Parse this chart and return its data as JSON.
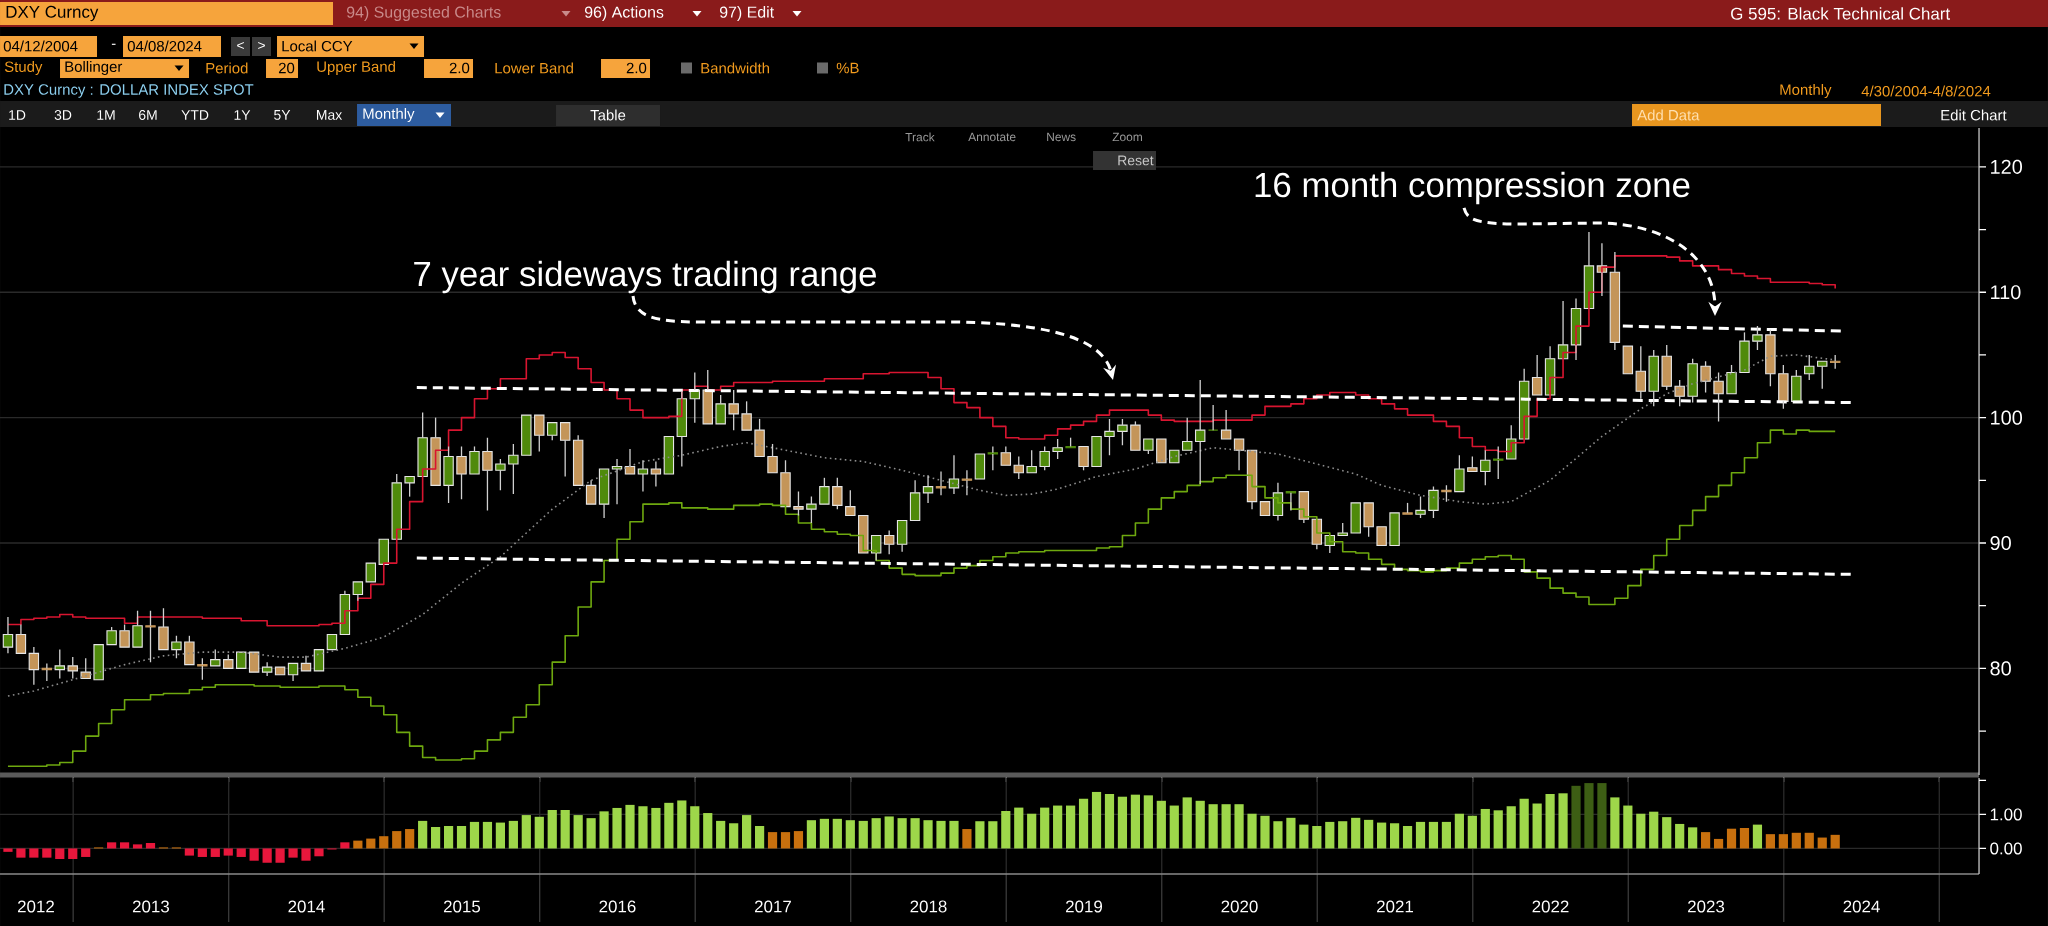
{
  "chart_data": [
    {
      "type": "candlestick",
      "title": "DXY Curncy : DOLLAR INDEX SPOT",
      "x": [
        "2012-07-31",
        "2012-08-31",
        "2012-09-30",
        "2012-10-31",
        "2012-11-30",
        "2012-12-31",
        "2013-01-31",
        "2013-02-28",
        "2013-03-31",
        "2013-04-30",
        "2013-05-31",
        "2013-06-30",
        "2013-07-31",
        "2013-08-31",
        "2013-09-30",
        "2013-10-31",
        "2013-11-30",
        "2013-12-31",
        "2014-01-31",
        "2014-02-28",
        "2014-03-31",
        "2014-04-30",
        "2014-05-31",
        "2014-06-30",
        "2014-07-31",
        "2014-08-31",
        "2014-09-30",
        "2014-10-31",
        "2014-11-30",
        "2014-12-31",
        "2015-01-31",
        "2015-02-28",
        "2015-03-31",
        "2015-04-30",
        "2015-05-31",
        "2015-06-30",
        "2015-07-31",
        "2015-08-31",
        "2015-09-30",
        "2015-10-31",
        "2015-11-30",
        "2015-12-31",
        "2016-01-31",
        "2016-02-29",
        "2016-03-31",
        "2016-04-30",
        "2016-05-31",
        "2016-06-30",
        "2016-07-31",
        "2016-08-31",
        "2016-09-30",
        "2016-10-31",
        "2016-11-30",
        "2016-12-31",
        "2017-01-31",
        "2017-02-28",
        "2017-03-31",
        "2017-04-30",
        "2017-05-31",
        "2017-06-30",
        "2017-07-31",
        "2017-08-31",
        "2017-09-30",
        "2017-10-31",
        "2017-11-30",
        "2017-12-31",
        "2018-01-31",
        "2018-02-28",
        "2018-03-31",
        "2018-04-30",
        "2018-05-31",
        "2018-06-30",
        "2018-07-31",
        "2018-08-31",
        "2018-09-30",
        "2018-10-31",
        "2018-11-30",
        "2018-12-31",
        "2019-01-31",
        "2019-02-28",
        "2019-03-31",
        "2019-04-30",
        "2019-05-31",
        "2019-06-30",
        "2019-07-31",
        "2019-08-31",
        "2019-09-30",
        "2019-10-31",
        "2019-11-30",
        "2019-12-31",
        "2020-01-31",
        "2020-02-29",
        "2020-03-31",
        "2020-04-30",
        "2020-05-31",
        "2020-06-30",
        "2020-07-31",
        "2020-08-31",
        "2020-09-30",
        "2020-10-31",
        "2020-11-30",
        "2020-12-31",
        "2021-01-31",
        "2021-02-28",
        "2021-03-31",
        "2021-04-30",
        "2021-05-31",
        "2021-06-30",
        "2021-07-31",
        "2021-08-31",
        "2021-09-30",
        "2021-10-31",
        "2021-11-30",
        "2021-12-31",
        "2022-01-31",
        "2022-02-28",
        "2022-03-31",
        "2022-04-30",
        "2022-05-31",
        "2022-06-30",
        "2022-07-31",
        "2022-08-31",
        "2022-09-30",
        "2022-10-31",
        "2022-11-30",
        "2022-12-31",
        "2023-01-31",
        "2023-02-28",
        "2023-03-31",
        "2023-04-30",
        "2023-05-31",
        "2023-06-30",
        "2023-07-31",
        "2023-08-31",
        "2023-09-30",
        "2023-10-31",
        "2023-11-30",
        "2023-12-31",
        "2024-01-31",
        "2024-02-29",
        "2024-03-31",
        "2024-04-30"
      ],
      "ohlc": [
        [
          81.7,
          84.1,
          81.2,
          82.7
        ],
        [
          82.7,
          83.5,
          81.1,
          81.2
        ],
        [
          81.2,
          81.7,
          78.7,
          79.9
        ],
        [
          80.0,
          80.4,
          79.0,
          79.9
        ],
        [
          79.9,
          81.5,
          79.2,
          80.2
        ],
        [
          80.2,
          80.9,
          79.2,
          79.8
        ],
        [
          79.7,
          80.8,
          79.1,
          79.2
        ],
        [
          79.1,
          82.1,
          79.0,
          81.9
        ],
        [
          81.9,
          83.3,
          81.8,
          83.0
        ],
        [
          83.0,
          83.5,
          81.5,
          81.7
        ],
        [
          81.7,
          84.6,
          81.5,
          83.4
        ],
        [
          83.4,
          84.6,
          80.5,
          83.3
        ],
        [
          83.3,
          84.8,
          81.3,
          81.5
        ],
        [
          81.5,
          82.6,
          80.8,
          82.1
        ],
        [
          82.1,
          82.6,
          80.1,
          80.3
        ],
        [
          80.3,
          80.8,
          79.1,
          80.2
        ],
        [
          80.2,
          81.5,
          80.1,
          80.7
        ],
        [
          80.7,
          81.1,
          79.8,
          80.0
        ],
        [
          80.0,
          81.4,
          79.9,
          81.3
        ],
        [
          81.3,
          81.4,
          79.6,
          79.7
        ],
        [
          79.7,
          80.5,
          79.4,
          80.1
        ],
        [
          80.1,
          80.2,
          79.3,
          79.5
        ],
        [
          79.5,
          80.5,
          79.0,
          80.4
        ],
        [
          80.4,
          81.0,
          79.8,
          79.8
        ],
        [
          79.8,
          81.6,
          79.7,
          81.5
        ],
        [
          81.5,
          82.8,
          81.4,
          82.7
        ],
        [
          82.7,
          86.2,
          82.6,
          85.9
        ],
        [
          85.9,
          87.1,
          85.4,
          86.9
        ],
        [
          86.9,
          88.4,
          86.7,
          88.4
        ],
        [
          88.3,
          90.4,
          88.3,
          90.3
        ],
        [
          90.3,
          95.5,
          90.3,
          94.8
        ],
        [
          94.8,
          95.5,
          93.7,
          95.3
        ],
        [
          95.3,
          100.4,
          95.3,
          98.4
        ],
        [
          98.4,
          100.0,
          94.5,
          94.6
        ],
        [
          94.6,
          97.7,
          93.2,
          96.9
        ],
        [
          96.9,
          97.7,
          93.5,
          95.5
        ],
        [
          95.5,
          97.7,
          95.3,
          97.3
        ],
        [
          97.3,
          98.4,
          92.6,
          95.8
        ],
        [
          95.8,
          96.7,
          94.2,
          96.3
        ],
        [
          96.3,
          97.9,
          93.9,
          97.0
        ],
        [
          97.0,
          100.3,
          96.9,
          100.2
        ],
        [
          100.2,
          100.4,
          97.3,
          98.6
        ],
        [
          98.6,
          99.8,
          98.2,
          99.6
        ],
        [
          99.6,
          99.8,
          95.3,
          98.2
        ],
        [
          98.2,
          98.6,
          94.6,
          94.6
        ],
        [
          94.6,
          95.0,
          93.0,
          93.1
        ],
        [
          93.1,
          96.0,
          92.0,
          95.9
        ],
        [
          95.9,
          96.7,
          93.1,
          96.1
        ],
        [
          96.1,
          97.5,
          95.3,
          95.5
        ],
        [
          95.5,
          96.6,
          94.1,
          95.9
        ],
        [
          95.9,
          96.5,
          94.5,
          95.5
        ],
        [
          95.5,
          98.6,
          95.4,
          98.5
        ],
        [
          98.5,
          102.1,
          96.1,
          101.5
        ],
        [
          101.5,
          103.6,
          99.6,
          102.2
        ],
        [
          102.2,
          103.8,
          99.5,
          99.5
        ],
        [
          99.5,
          101.8,
          99.3,
          101.1
        ],
        [
          101.1,
          102.2,
          99.0,
          100.3
        ],
        [
          100.3,
          101.3,
          98.8,
          99.0
        ],
        [
          99.0,
          99.9,
          96.8,
          96.9
        ],
        [
          96.9,
          97.9,
          95.5,
          95.6
        ],
        [
          95.6,
          96.6,
          92.8,
          92.9
        ],
        [
          92.9,
          94.1,
          92.2,
          92.7
        ],
        [
          92.7,
          93.7,
          91.6,
          93.1
        ],
        [
          93.1,
          95.2,
          93.0,
          94.5
        ],
        [
          94.5,
          95.2,
          92.7,
          93.0
        ],
        [
          92.9,
          94.2,
          92.1,
          92.2
        ],
        [
          92.2,
          92.4,
          89.1,
          89.2
        ],
        [
          89.2,
          90.8,
          88.6,
          90.6
        ],
        [
          90.6,
          91.0,
          89.1,
          89.9
        ],
        [
          89.9,
          91.9,
          89.3,
          91.8
        ],
        [
          91.8,
          95.0,
          91.8,
          94.0
        ],
        [
          94.0,
          95.4,
          93.2,
          94.5
        ],
        [
          94.5,
          95.7,
          93.8,
          94.4
        ],
        [
          94.4,
          97.0,
          93.9,
          95.1
        ],
        [
          95.1,
          95.8,
          93.8,
          95.0
        ],
        [
          95.1,
          97.2,
          94.9,
          97.1
        ],
        [
          97.1,
          97.7,
          95.8,
          97.2
        ],
        [
          97.2,
          97.7,
          96.1,
          96.2
        ],
        [
          96.2,
          96.9,
          95.1,
          95.6
        ],
        [
          95.6,
          97.4,
          95.4,
          96.1
        ],
        [
          96.1,
          97.7,
          95.8,
          97.3
        ],
        [
          97.3,
          98.3,
          96.7,
          97.6
        ],
        [
          97.6,
          98.4,
          97.4,
          97.7
        ],
        [
          97.7,
          97.8,
          95.8,
          96.1
        ],
        [
          96.1,
          98.7,
          96.1,
          98.5
        ],
        [
          98.5,
          99.9,
          97.0,
          98.9
        ],
        [
          98.9,
          99.9,
          97.8,
          99.4
        ],
        [
          99.4,
          99.7,
          97.3,
          97.4
        ],
        [
          97.4,
          98.4,
          97.1,
          98.3
        ],
        [
          98.3,
          98.4,
          96.3,
          96.4
        ],
        [
          96.4,
          97.5,
          96.3,
          97.4
        ],
        [
          97.4,
          100.0,
          97.3,
          98.1
        ],
        [
          98.1,
          103.0,
          94.7,
          99.0
        ],
        [
          99.0,
          101.0,
          98.9,
          99.0
        ],
        [
          99.0,
          100.6,
          98.2,
          98.3
        ],
        [
          98.3,
          98.4,
          95.8,
          97.4
        ],
        [
          97.4,
          97.5,
          92.7,
          93.3
        ],
        [
          93.3,
          93.4,
          92.1,
          92.2
        ],
        [
          92.2,
          94.8,
          91.8,
          94.0
        ],
        [
          94.0,
          94.2,
          92.6,
          94.1
        ],
        [
          94.1,
          94.2,
          91.6,
          91.9
        ],
        [
          91.9,
          91.9,
          89.5,
          89.9
        ],
        [
          89.8,
          90.7,
          89.2,
          90.6
        ],
        [
          90.6,
          91.6,
          90.5,
          90.8
        ],
        [
          90.8,
          93.3,
          90.6,
          93.2
        ],
        [
          93.2,
          93.3,
          90.5,
          91.3
        ],
        [
          91.3,
          91.4,
          89.6,
          89.8
        ],
        [
          89.8,
          92.4,
          89.7,
          92.4
        ],
        [
          92.4,
          93.2,
          92.2,
          92.3
        ],
        [
          92.3,
          93.7,
          92.0,
          92.6
        ],
        [
          92.6,
          94.5,
          92.0,
          94.2
        ],
        [
          94.2,
          94.6,
          93.3,
          94.1
        ],
        [
          94.1,
          97.0,
          93.9,
          95.9
        ],
        [
          96.0,
          96.9,
          95.5,
          95.7
        ],
        [
          95.7,
          97.4,
          94.6,
          96.6
        ],
        [
          96.6,
          97.7,
          95.1,
          96.7
        ],
        [
          96.7,
          99.4,
          96.6,
          98.3
        ],
        [
          98.3,
          103.9,
          98.2,
          102.9
        ],
        [
          103.2,
          105.0,
          101.7,
          101.8
        ],
        [
          101.8,
          105.7,
          101.6,
          104.7
        ],
        [
          104.7,
          109.3,
          104.7,
          105.8
        ],
        [
          105.8,
          109.5,
          104.6,
          108.7
        ],
        [
          108.7,
          114.8,
          108.6,
          112.1
        ],
        [
          112.1,
          113.9,
          109.7,
          111.6
        ],
        [
          111.6,
          113.2,
          105.4,
          106.0
        ],
        [
          105.7,
          105.8,
          103.4,
          103.5
        ],
        [
          103.7,
          105.7,
          101.5,
          102.1
        ],
        [
          102.1,
          105.4,
          100.9,
          104.9
        ],
        [
          104.9,
          105.8,
          102.2,
          102.5
        ],
        [
          102.5,
          103.0,
          100.9,
          101.7
        ],
        [
          101.7,
          104.7,
          101.2,
          104.3
        ],
        [
          104.1,
          104.5,
          102.0,
          102.9
        ],
        [
          102.9,
          103.6,
          99.7,
          101.9
        ],
        [
          101.9,
          104.2,
          101.8,
          103.6
        ],
        [
          103.6,
          106.8,
          103.4,
          106.1
        ],
        [
          106.1,
          107.3,
          105.4,
          106.6
        ],
        [
          106.6,
          107.0,
          102.5,
          103.5
        ],
        [
          103.5,
          104.2,
          100.7,
          101.3
        ],
        [
          101.3,
          103.8,
          101.2,
          103.3
        ],
        [
          103.5,
          105.0,
          103.0,
          104.1
        ],
        [
          104.1,
          104.7,
          102.3,
          104.5
        ],
        [
          104.5,
          105.0,
          103.9,
          104.4
        ]
      ],
      "colors": [
        "#4f8a0b",
        "#c49559",
        "#c49559",
        "#c49559",
        "#4f8a0b",
        "#c49559",
        "#c49559",
        "#4f8a0b",
        "#4f8a0b",
        "#c49559",
        "#4f8a0b",
        "#c49559",
        "#c49559",
        "#4f8a0b",
        "#c49559",
        "#c49559",
        "#4f8a0b",
        "#c49559",
        "#4f8a0b",
        "#c49559",
        "#4f8a0b",
        "#c49559",
        "#4f8a0b",
        "#c49559",
        "#4f8a0b",
        "#4f8a0b",
        "#4f8a0b",
        "#4f8a0b",
        "#4f8a0b",
        "#4f8a0b",
        "#4f8a0b",
        "#4f8a0b",
        "#4f8a0b",
        "#c49559",
        "#4f8a0b",
        "#c49559",
        "#4f8a0b",
        "#c49559",
        "#4f8a0b",
        "#4f8a0b",
        "#4f8a0b",
        "#c49559",
        "#4f8a0b",
        "#c49559",
        "#c49559",
        "#c49559",
        "#4f8a0b",
        "#4f8a0b",
        "#c49559",
        "#4f8a0b",
        "#c49559",
        "#4f8a0b",
        "#4f8a0b",
        "#4f8a0b",
        "#c49559",
        "#4f8a0b",
        "#c49559",
        "#c49559",
        "#c49559",
        "#c49559",
        "#c49559",
        "#c49559",
        "#4f8a0b",
        "#4f8a0b",
        "#c49559",
        "#c49559",
        "#c49559",
        "#4f8a0b",
        "#c49559",
        "#4f8a0b",
        "#4f8a0b",
        "#4f8a0b",
        "#c49559",
        "#4f8a0b",
        "#c49559",
        "#4f8a0b",
        "#4f8a0b",
        "#c49559",
        "#c49559",
        "#4f8a0b",
        "#4f8a0b",
        "#4f8a0b",
        "#4f8a0b",
        "#c49559",
        "#4f8a0b",
        "#4f8a0b",
        "#4f8a0b",
        "#c49559",
        "#4f8a0b",
        "#c49559",
        "#4f8a0b",
        "#4f8a0b",
        "#4f8a0b",
        "#4f8a0b",
        "#c49559",
        "#c49559",
        "#c49559",
        "#c49559",
        "#4f8a0b",
        "#4f8a0b",
        "#c49559",
        "#c49559",
        "#4f8a0b",
        "#4f8a0b",
        "#4f8a0b",
        "#c49559",
        "#c49559",
        "#4f8a0b",
        "#c49559",
        "#4f8a0b",
        "#4f8a0b",
        "#c49559",
        "#4f8a0b",
        "#c49559",
        "#4f8a0b",
        "#4f8a0b",
        "#4f8a0b",
        "#4f8a0b",
        "#c49559",
        "#4f8a0b",
        "#4f8a0b",
        "#4f8a0b",
        "#4f8a0b",
        "#c49559",
        "#c49559",
        "#c49559",
        "#c49559",
        "#4f8a0b",
        "#c49559",
        "#c49559",
        "#4f8a0b",
        "#c49559",
        "#c49559",
        "#4f8a0b",
        "#4f8a0b",
        "#4f8a0b",
        "#c49559",
        "#c49559",
        "#4f8a0b",
        "#4f8a0b",
        "#4f8a0b",
        "#c49559"
      ],
      "series": [
        {
          "type": "step",
          "color": "#d81530",
          "values": [
            83.5,
            83.9,
            84.0,
            84.1,
            84.3,
            84.1,
            84.0,
            84.0,
            84.0,
            83.6,
            84.1,
            84.1,
            84.1,
            84.1,
            84.1,
            84.0,
            84.0,
            84.0,
            83.8,
            83.8,
            83.4,
            83.4,
            83.4,
            83.4,
            83.5,
            83.6,
            84.6,
            85.6,
            86.7,
            88.4,
            91.1,
            93.3,
            95.9,
            97.4,
            99.0,
            100.0,
            101.5,
            102.3,
            103.1,
            103.1,
            104.7,
            105.0,
            105.2,
            104.8,
            103.9,
            102.8,
            102.2,
            101.5,
            100.6,
            100.0,
            100.0,
            100.1,
            102.2,
            102.5,
            102.2,
            102.5,
            102.8,
            102.8,
            102.8,
            102.9,
            102.9,
            102.9,
            102.9,
            103.1,
            103.1,
            103.1,
            103.5,
            103.5,
            103.6,
            103.6,
            103.6,
            103.2,
            102.3,
            101.2,
            100.8,
            100.0,
            99.3,
            98.4,
            98.3,
            98.3,
            98.6,
            99.1,
            99.4,
            99.7,
            100.2,
            100.6,
            100.6,
            100.6,
            100.2,
            99.8,
            99.7,
            99.7,
            99.7,
            99.8,
            99.8,
            99.8,
            100.2,
            100.9,
            100.9,
            101.1,
            101.5,
            101.8,
            102.0,
            102.0,
            101.8,
            101.5,
            101.1,
            100.7,
            100.2,
            100.2,
            99.7,
            99.3,
            98.4,
            97.7,
            97.4,
            97.3,
            98.0,
            100.1,
            101.5,
            103.2,
            105.2,
            107.3,
            110.0,
            112.0,
            112.9,
            112.9,
            112.9,
            112.9,
            112.8,
            112.5,
            112.1,
            112.1,
            111.8,
            111.5,
            111.3,
            111.1,
            110.8,
            110.8,
            110.8,
            110.7,
            110.6,
            110.3
          ]
        },
        {
          "type": "line",
          "color": "#8c8c8c",
          "line_style": "dotted",
          "x": [
            "2012-07-31",
            "2012-09-30",
            "2012-12-31",
            "2013-04-30",
            "2013-07-31",
            "2013-10-31",
            "2014-01-31",
            "2014-04-30",
            "2014-06-30",
            "2014-09-30",
            "2014-12-31",
            "2015-03-31",
            "2015-06-30",
            "2015-09-30",
            "2015-11-30",
            "2016-01-31",
            "2016-04-30",
            "2016-08-31",
            "2016-11-30",
            "2017-02-28",
            "2017-04-30",
            "2017-07-31",
            "2017-10-31",
            "2018-01-31",
            "2018-04-30",
            "2018-07-31",
            "2018-10-31",
            "2018-12-31",
            "2019-02-28",
            "2019-04-30",
            "2019-07-31",
            "2019-10-31",
            "2020-01-31",
            "2020-04-30",
            "2020-09-30",
            "2020-12-31",
            "2021-03-31",
            "2021-05-31",
            "2021-08-31",
            "2021-11-30",
            "2022-01-31",
            "2022-03-31",
            "2022-06-30",
            "2022-10-31",
            "2023-01-31",
            "2023-03-31",
            "2023-05-31",
            "2023-09-30",
            "2023-11-30",
            "2024-01-31",
            "2024-04-30"
          ],
          "values": [
            77.8,
            78.2,
            79.1,
            80.3,
            81.0,
            81.3,
            81.3,
            80.9,
            80.9,
            81.6,
            82.5,
            84.3,
            86.8,
            88.9,
            90.8,
            92.7,
            95.0,
            96.5,
            97.0,
            97.7,
            98.0,
            97.4,
            96.8,
            96.5,
            95.8,
            95.0,
            94.2,
            93.8,
            93.9,
            94.3,
            95.3,
            95.9,
            96.9,
            97.6,
            97.1,
            96.3,
            95.5,
            94.6,
            93.8,
            93.3,
            93.1,
            93.3,
            95.0,
            98.5,
            100.7,
            101.9,
            102.7,
            103.8,
            104.9,
            105.0,
            104.6
          ]
        },
        {
          "type": "step",
          "color": "#6ea80f",
          "values": [
            72.2,
            72.2,
            72.2,
            72.3,
            72.5,
            73.4,
            74.6,
            75.6,
            76.7,
            77.5,
            77.5,
            77.9,
            78.0,
            78.0,
            78.3,
            78.5,
            78.7,
            78.7,
            78.7,
            78.6,
            78.6,
            78.5,
            78.5,
            78.5,
            78.6,
            78.6,
            78.3,
            77.7,
            77.0,
            76.3,
            74.9,
            73.8,
            72.9,
            72.7,
            72.7,
            72.8,
            73.4,
            74.3,
            74.9,
            76.1,
            77.1,
            78.7,
            80.5,
            82.6,
            84.9,
            86.9,
            88.6,
            90.3,
            91.7,
            93.1,
            93.1,
            93.2,
            92.8,
            92.8,
            92.7,
            92.7,
            93.0,
            93.0,
            93.1,
            93.0,
            92.3,
            91.6,
            91.1,
            90.9,
            90.7,
            90.6,
            89.4,
            88.6,
            88.0,
            87.5,
            87.4,
            87.4,
            87.6,
            88.0,
            88.2,
            88.6,
            88.9,
            89.2,
            89.3,
            89.3,
            89.4,
            89.4,
            89.4,
            89.4,
            89.6,
            89.7,
            90.6,
            91.6,
            92.7,
            93.6,
            94.1,
            94.6,
            94.9,
            95.2,
            95.4,
            95.4,
            94.5,
            93.6,
            93.2,
            92.7,
            92.1,
            90.8,
            90.1,
            89.3,
            89.2,
            88.7,
            88.3,
            87.9,
            87.8,
            87.7,
            87.8,
            88.0,
            88.4,
            88.7,
            88.9,
            89.0,
            88.7,
            87.7,
            87.2,
            86.4,
            86.0,
            85.7,
            85.1,
            85.1,
            85.6,
            86.6,
            87.9,
            89.0,
            90.3,
            91.4,
            92.6,
            93.7,
            94.6,
            95.6,
            96.8,
            98.0,
            99.0,
            98.7,
            99.0,
            98.9,
            98.9,
            98.9
          ]
        },
        {
          "type": "line",
          "color": "#ffffff",
          "line_style": "dashed",
          "x": [
            "2015-03-17",
            "2024-06-09"
          ],
          "values": [
            102.4,
            101.2
          ]
        },
        {
          "type": "line",
          "color": "#ffffff",
          "line_style": "dashed",
          "x": [
            "2015-03-17",
            "2024-06-09"
          ],
          "values": [
            88.8,
            87.5
          ]
        },
        {
          "type": "line",
          "color": "#ffffff",
          "line_style": "dashed",
          "x": [
            "2022-12-19",
            "2024-05-16"
          ],
          "values": [
            107.3,
            106.9
          ]
        }
      ],
      "xlim": [
        "2012-07-12",
        "2025-04-03"
      ],
      "xticks": [
        {
          "value": "2013-01-01",
          "label": null
        },
        {
          "value": "2014-01-01",
          "label": null
        },
        {
          "value": "2015-01-01",
          "label": null
        },
        {
          "value": "2016-01-01",
          "label": null
        },
        {
          "value": "2017-01-01",
          "label": null
        },
        {
          "value": "2018-01-01",
          "label": null
        },
        {
          "value": "2019-01-01",
          "label": null
        },
        {
          "value": "2020-01-01",
          "label": null
        },
        {
          "value": "2021-01-01",
          "label": null
        },
        {
          "value": "2022-01-01",
          "label": null
        },
        {
          "value": "2023-01-01",
          "label": null
        },
        {
          "value": "2024-01-01",
          "label": null
        },
        {
          "value": "2025-01-01",
          "label": null
        }
      ],
      "ylim": [
        71.5,
        123.1
      ],
      "yticks": [
        {
          "value": 75,
          "label": null
        },
        80,
        {
          "value": 85,
          "label": null
        },
        90,
        {
          "value": 95,
          "label": null
        },
        100,
        {
          "value": 105,
          "label": null
        },
        110,
        {
          "value": 115,
          "label": null
        },
        120
      ],
      "grid": "y",
      "tick_labels": "y",
      "annotations": [
        "7 year sideways trading range",
        "16 month compression zone",
        "DXY Curncy",
        "94) Suggested Charts",
        "96) Actions",
        "97) Edit",
        "G 595: Black Technical Chart",
        "04/12/2004",
        "-",
        "04/08/2024",
        "<",
        ">",
        "Local CCY",
        "Study",
        "Bollinger",
        "Period",
        "20",
        "Upper Band",
        "2.0",
        "Lower Band",
        "2.0",
        "Bandwidth",
        "%B",
        "Monthly",
        "4/30/2004-4/8/2024",
        "1D",
        "3D",
        "1M",
        "6M",
        "YTD",
        "1Y",
        "5Y",
        "Max",
        "Monthly",
        "Table",
        "Add Data",
        "Edit Chart",
        "Track",
        "Annotate",
        "News",
        "Zoom",
        "Reset"
      ]
    },
    {
      "type": "bar",
      "x": [
        "2012-07-31",
        "2012-08-31",
        "2012-09-30",
        "2012-10-31",
        "2012-11-30",
        "2012-12-31",
        "2013-01-31",
        "2013-02-28",
        "2013-03-31",
        "2013-04-30",
        "2013-05-31",
        "2013-06-30",
        "2013-07-31",
        "2013-08-31",
        "2013-09-30",
        "2013-10-31",
        "2013-11-30",
        "2013-12-31",
        "2014-01-31",
        "2014-02-28",
        "2014-03-31",
        "2014-04-30",
        "2014-05-31",
        "2014-06-30",
        "2014-07-31",
        "2014-08-31",
        "2014-09-30",
        "2014-10-31",
        "2014-11-30",
        "2014-12-31",
        "2015-01-31",
        "2015-02-28",
        "2015-03-31",
        "2015-04-30",
        "2015-05-31",
        "2015-06-30",
        "2015-07-31",
        "2015-08-31",
        "2015-09-30",
        "2015-10-31",
        "2015-11-30",
        "2015-12-31",
        "2016-01-31",
        "2016-02-29",
        "2016-03-31",
        "2016-04-30",
        "2016-05-31",
        "2016-06-30",
        "2016-07-31",
        "2016-08-31",
        "2016-09-30",
        "2016-10-31",
        "2016-11-30",
        "2016-12-31",
        "2017-01-31",
        "2017-02-28",
        "2017-03-31",
        "2017-04-30",
        "2017-05-31",
        "2017-06-30",
        "2017-07-31",
        "2017-08-31",
        "2017-09-30",
        "2017-10-31",
        "2017-11-30",
        "2017-12-31",
        "2018-01-31",
        "2018-02-28",
        "2018-03-31",
        "2018-04-30",
        "2018-05-31",
        "2018-06-30",
        "2018-07-31",
        "2018-08-31",
        "2018-09-30",
        "2018-10-31",
        "2018-11-30",
        "2018-12-31",
        "2019-01-31",
        "2019-02-28",
        "2019-03-31",
        "2019-04-30",
        "2019-05-31",
        "2019-06-30",
        "2019-07-31",
        "2019-08-31",
        "2019-09-30",
        "2019-10-31",
        "2019-11-30",
        "2019-12-31",
        "2020-01-31",
        "2020-02-29",
        "2020-03-31",
        "2020-04-30",
        "2020-05-31",
        "2020-06-30",
        "2020-07-31",
        "2020-08-31",
        "2020-09-30",
        "2020-10-31",
        "2020-11-30",
        "2020-12-31",
        "2021-01-31",
        "2021-02-28",
        "2021-03-31",
        "2021-04-30",
        "2021-05-31",
        "2021-06-30",
        "2021-07-31",
        "2021-08-31",
        "2021-09-30",
        "2021-10-31",
        "2021-11-30",
        "2021-12-31",
        "2022-01-31",
        "2022-02-28",
        "2022-03-31",
        "2022-04-30",
        "2022-05-31",
        "2022-06-30",
        "2022-07-31",
        "2022-08-31",
        "2022-09-30",
        "2022-10-31",
        "2022-11-30",
        "2022-12-31",
        "2023-01-31",
        "2023-02-28",
        "2023-03-31",
        "2023-04-30",
        "2023-05-31",
        "2023-06-30",
        "2023-07-31",
        "2023-08-31",
        "2023-09-30",
        "2023-10-31",
        "2023-11-30",
        "2023-12-31",
        "2024-01-31",
        "2024-02-29",
        "2024-03-31",
        "2024-04-30"
      ],
      "values": [
        -0.1,
        -0.27,
        -0.27,
        -0.27,
        -0.31,
        -0.31,
        -0.25,
        0.03,
        0.18,
        0.18,
        0.12,
        0.16,
        0.03,
        0.03,
        -0.21,
        -0.25,
        -0.25,
        -0.21,
        -0.25,
        -0.36,
        -0.42,
        -0.42,
        -0.27,
        -0.36,
        -0.23,
        -0.03,
        0.18,
        0.23,
        0.29,
        0.36,
        0.51,
        0.57,
        0.81,
        0.63,
        0.66,
        0.66,
        0.78,
        0.78,
        0.76,
        0.81,
        0.98,
        0.93,
        1.13,
        1.13,
        0.98,
        0.89,
        1.09,
        1.19,
        1.28,
        1.24,
        1.19,
        1.34,
        1.41,
        1.24,
        1.04,
        0.81,
        0.74,
        0.98,
        0.66,
        0.48,
        0.48,
        0.51,
        0.83,
        0.87,
        0.87,
        0.83,
        0.81,
        0.89,
        0.94,
        0.89,
        0.89,
        0.83,
        0.81,
        0.81,
        0.57,
        0.8,
        0.8,
        1.1,
        1.2,
        1.02,
        1.2,
        1.26,
        1.26,
        1.46,
        1.66,
        1.6,
        1.52,
        1.58,
        1.56,
        1.4,
        1.26,
        1.5,
        1.4,
        1.3,
        1.3,
        1.3,
        1.02,
        0.96,
        0.8,
        0.9,
        0.7,
        0.66,
        0.78,
        0.8,
        0.9,
        0.84,
        0.76,
        0.74,
        0.66,
        0.78,
        0.78,
        0.78,
        1.02,
        0.96,
        1.16,
        1.12,
        1.24,
        1.46,
        1.32,
        1.6,
        1.62,
        1.84,
        1.92,
        1.92,
        1.5,
        1.26,
        1.02,
        1.08,
        0.92,
        0.72,
        0.62,
        0.48,
        0.28,
        0.58,
        0.6,
        0.7,
        0.42,
        0.42,
        0.46,
        0.46,
        0.32,
        0.4
      ],
      "colors": [
        "#e8173c",
        "#e8173c",
        "#e8173c",
        "#e8173c",
        "#e8173c",
        "#e8173c",
        "#e8173c",
        "#c8700e",
        "#e8173c",
        "#e8173c",
        "#e8173c",
        "#e8173c",
        "#c8700e",
        "#c8700e",
        "#e8173c",
        "#e8173c",
        "#e8173c",
        "#e8173c",
        "#e8173c",
        "#e8173c",
        "#e8173c",
        "#e8173c",
        "#e8173c",
        "#e8173c",
        "#e8173c",
        "#e8173c",
        "#e8173c",
        "#c8700e",
        "#c8700e",
        "#c8700e",
        "#c8700e",
        "#c8700e",
        "#9ed74a",
        "#9ed74a",
        "#9ed74a",
        "#9ed74a",
        "#9ed74a",
        "#9ed74a",
        "#9ed74a",
        "#9ed74a",
        "#9ed74a",
        "#9ed74a",
        "#9ed74a",
        "#9ed74a",
        "#9ed74a",
        "#9ed74a",
        "#9ed74a",
        "#9ed74a",
        "#9ed74a",
        "#9ed74a",
        "#9ed74a",
        "#9ed74a",
        "#9ed74a",
        "#9ed74a",
        "#9ed74a",
        "#9ed74a",
        "#9ed74a",
        "#9ed74a",
        "#9ed74a",
        "#c8700e",
        "#c8700e",
        "#c8700e",
        "#9ed74a",
        "#9ed74a",
        "#9ed74a",
        "#9ed74a",
        "#9ed74a",
        "#9ed74a",
        "#9ed74a",
        "#9ed74a",
        "#9ed74a",
        "#9ed74a",
        "#9ed74a",
        "#9ed74a",
        "#c8700e",
        "#9ed74a",
        "#9ed74a",
        "#9ed74a",
        "#9ed74a",
        "#9ed74a",
        "#9ed74a",
        "#9ed74a",
        "#9ed74a",
        "#9ed74a",
        "#9ed74a",
        "#9ed74a",
        "#9ed74a",
        "#9ed74a",
        "#9ed74a",
        "#9ed74a",
        "#9ed74a",
        "#9ed74a",
        "#9ed74a",
        "#9ed74a",
        "#9ed74a",
        "#9ed74a",
        "#9ed74a",
        "#9ed74a",
        "#9ed74a",
        "#9ed74a",
        "#9ed74a",
        "#9ed74a",
        "#9ed74a",
        "#9ed74a",
        "#9ed74a",
        "#9ed74a",
        "#9ed74a",
        "#9ed74a",
        "#9ed74a",
        "#9ed74a",
        "#9ed74a",
        "#9ed74a",
        "#9ed74a",
        "#9ed74a",
        "#9ed74a",
        "#9ed74a",
        "#9ed74a",
        "#9ed74a",
        "#9ed74a",
        "#9ed74a",
        "#9ed74a",
        "#3d5e14",
        "#3d5e14",
        "#3d5e14",
        "#9ed74a",
        "#9ed74a",
        "#9ed74a",
        "#9ed74a",
        "#9ed74a",
        "#9ed74a",
        "#9ed74a",
        "#c8700e",
        "#c8700e",
        "#c8700e",
        "#c8700e",
        "#9ed74a",
        "#c8700e",
        "#c8700e",
        "#c8700e",
        "#c8700e",
        "#c8700e",
        "#c8700e"
      ],
      "xlim": [
        "2012-07-12",
        "2025-04-03"
      ],
      "xticks": [
        {
          "value": "2012-10-05",
          "label": "2012"
        },
        {
          "value": "2013-01-01",
          "label": null
        },
        {
          "value": "2013-07-01",
          "label": "2013"
        },
        {
          "value": "2014-01-01",
          "label": null
        },
        {
          "value": "2014-07-01",
          "label": "2014"
        },
        {
          "value": "2015-01-01",
          "label": null
        },
        {
          "value": "2015-07-01",
          "label": "2015"
        },
        {
          "value": "2016-01-01",
          "label": null
        },
        {
          "value": "2016-07-01",
          "label": "2016"
        },
        {
          "value": "2017-01-01",
          "label": null
        },
        {
          "value": "2017-07-01",
          "label": "2017"
        },
        {
          "value": "2018-01-01",
          "label": null
        },
        {
          "value": "2018-07-01",
          "label": "2018"
        },
        {
          "value": "2019-01-01",
          "label": null
        },
        {
          "value": "2019-07-01",
          "label": "2019"
        },
        {
          "value": "2020-01-01",
          "label": null
        },
        {
          "value": "2020-07-01",
          "label": "2020"
        },
        {
          "value": "2021-01-01",
          "label": null
        },
        {
          "value": "2021-07-01",
          "label": "2021"
        },
        {
          "value": "2022-01-01",
          "label": null
        },
        {
          "value": "2022-07-01",
          "label": "2022"
        },
        {
          "value": "2023-01-01",
          "label": null
        },
        {
          "value": "2023-07-01",
          "label": "2023"
        },
        {
          "value": "2024-01-01",
          "label": null
        },
        {
          "value": "2024-07-01",
          "label": "2024"
        },
        {
          "value": "2025-01-01",
          "label": null
        }
      ],
      "ylim": [
        -0.75,
        2.07
      ],
      "yticks": [
        {
          "value": 0,
          "label": "0.00"
        },
        {
          "value": 1,
          "label": "1.00"
        },
        {
          "value": 2,
          "label": null
        }
      ],
      "grid": true
    }
  ]
}
